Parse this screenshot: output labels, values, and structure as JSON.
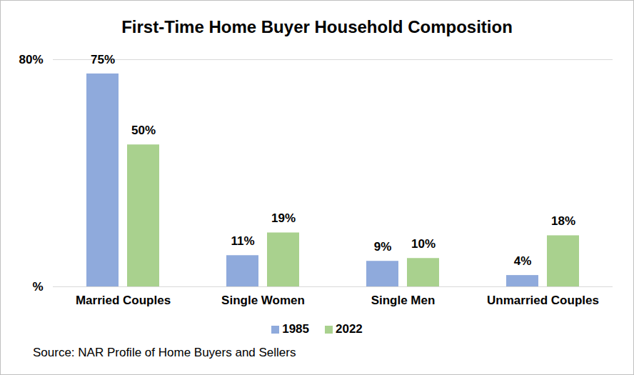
{
  "chart_data": {
    "type": "bar",
    "title": "First-Time Home Buyer Household Composition",
    "caption": "Source: NAR Profile of Home Buyers and Sellers",
    "categories": [
      "Married Couples",
      "Single Women",
      "Single Men",
      "Unmarried Couples"
    ],
    "series": [
      {
        "name": "1985",
        "color": "#8faadc",
        "values": [
          75,
          11,
          9,
          4
        ],
        "value_labels": [
          "75%",
          "11%",
          "9%",
          "4%"
        ]
      },
      {
        "name": "2022",
        "color": "#a9d18e",
        "values": [
          50,
          19,
          10,
          18
        ],
        "value_labels": [
          "50%",
          "19%",
          "10%",
          "18%"
        ]
      }
    ],
    "ylim": [
      0,
      80
    ],
    "yticks": [
      {
        "value": 0,
        "label": "%"
      },
      {
        "value": 80,
        "label": "80%"
      }
    ],
    "grid": true,
    "legend": "bottom",
    "data_labels": true
  }
}
